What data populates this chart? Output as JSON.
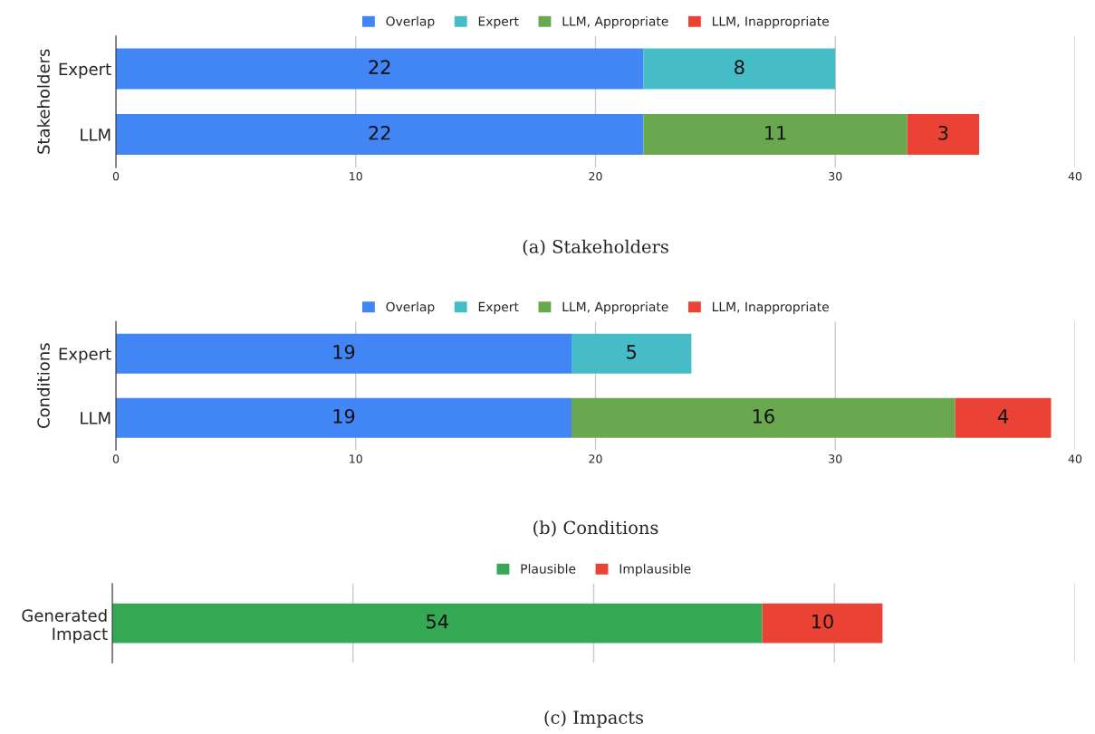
{
  "chart_data": [
    {
      "type": "bar",
      "orientation": "horizontal",
      "stacked": true,
      "categories": [
        "Expert",
        "LLM"
      ],
      "ylabel": "Stakeholders",
      "xlim": [
        0,
        40
      ],
      "xticks": [
        0,
        10,
        20,
        30,
        40
      ],
      "grid": "x",
      "legend": "top",
      "data_labels": true,
      "annotations": [
        "(a) Stakeholders"
      ],
      "series": [
        {
          "name": "Overlap",
          "color": "#4285f4",
          "values": [
            22,
            22
          ]
        },
        {
          "name": "Expert",
          "color": "#46bdc6",
          "values": [
            8,
            null
          ]
        },
        {
          "name": "LLM, Appropriate",
          "color": "#6aa84f",
          "values": [
            null,
            11
          ]
        },
        {
          "name": "LLM, Inappropriate",
          "color": "#ea4335",
          "values": [
            null,
            3
          ]
        }
      ]
    },
    {
      "type": "bar",
      "orientation": "horizontal",
      "stacked": true,
      "categories": [
        "Expert",
        "LLM"
      ],
      "ylabel": "Conditions",
      "xlim": [
        0,
        40
      ],
      "xticks": [
        0,
        10,
        20,
        30,
        40
      ],
      "grid": "x",
      "legend": "top",
      "data_labels": true,
      "annotations": [
        "(b) Conditions"
      ],
      "series": [
        {
          "name": "Overlap",
          "color": "#4285f4",
          "values": [
            19,
            19
          ]
        },
        {
          "name": "Expert",
          "color": "#46bdc6",
          "values": [
            5,
            null
          ]
        },
        {
          "name": "LLM, Appropriate",
          "color": "#6aa84f",
          "values": [
            null,
            16
          ]
        },
        {
          "name": "LLM, Inappropriate",
          "color": "#ea4335",
          "values": [
            null,
            4
          ]
        }
      ]
    },
    {
      "type": "bar",
      "orientation": "horizontal",
      "stacked": true,
      "categories": [
        "Generated\nImpact"
      ],
      "xlim": [
        0,
        80
      ],
      "xticks": [
        {
          "value": 0,
          "label": null
        },
        {
          "value": 20,
          "label": null
        },
        {
          "value": 40,
          "label": null
        },
        {
          "value": 60,
          "label": null
        },
        {
          "value": 80,
          "label": null
        }
      ],
      "tick_labels": "y",
      "grid": "x",
      "legend": "top",
      "data_labels": true,
      "annotations": [
        "(c) Impacts"
      ],
      "series": [
        {
          "name": "Plausible",
          "color": "#34a853",
          "values": [
            54
          ]
        },
        {
          "name": "Implausible",
          "color": "#ea4335",
          "values": [
            10
          ]
        }
      ]
    }
  ]
}
